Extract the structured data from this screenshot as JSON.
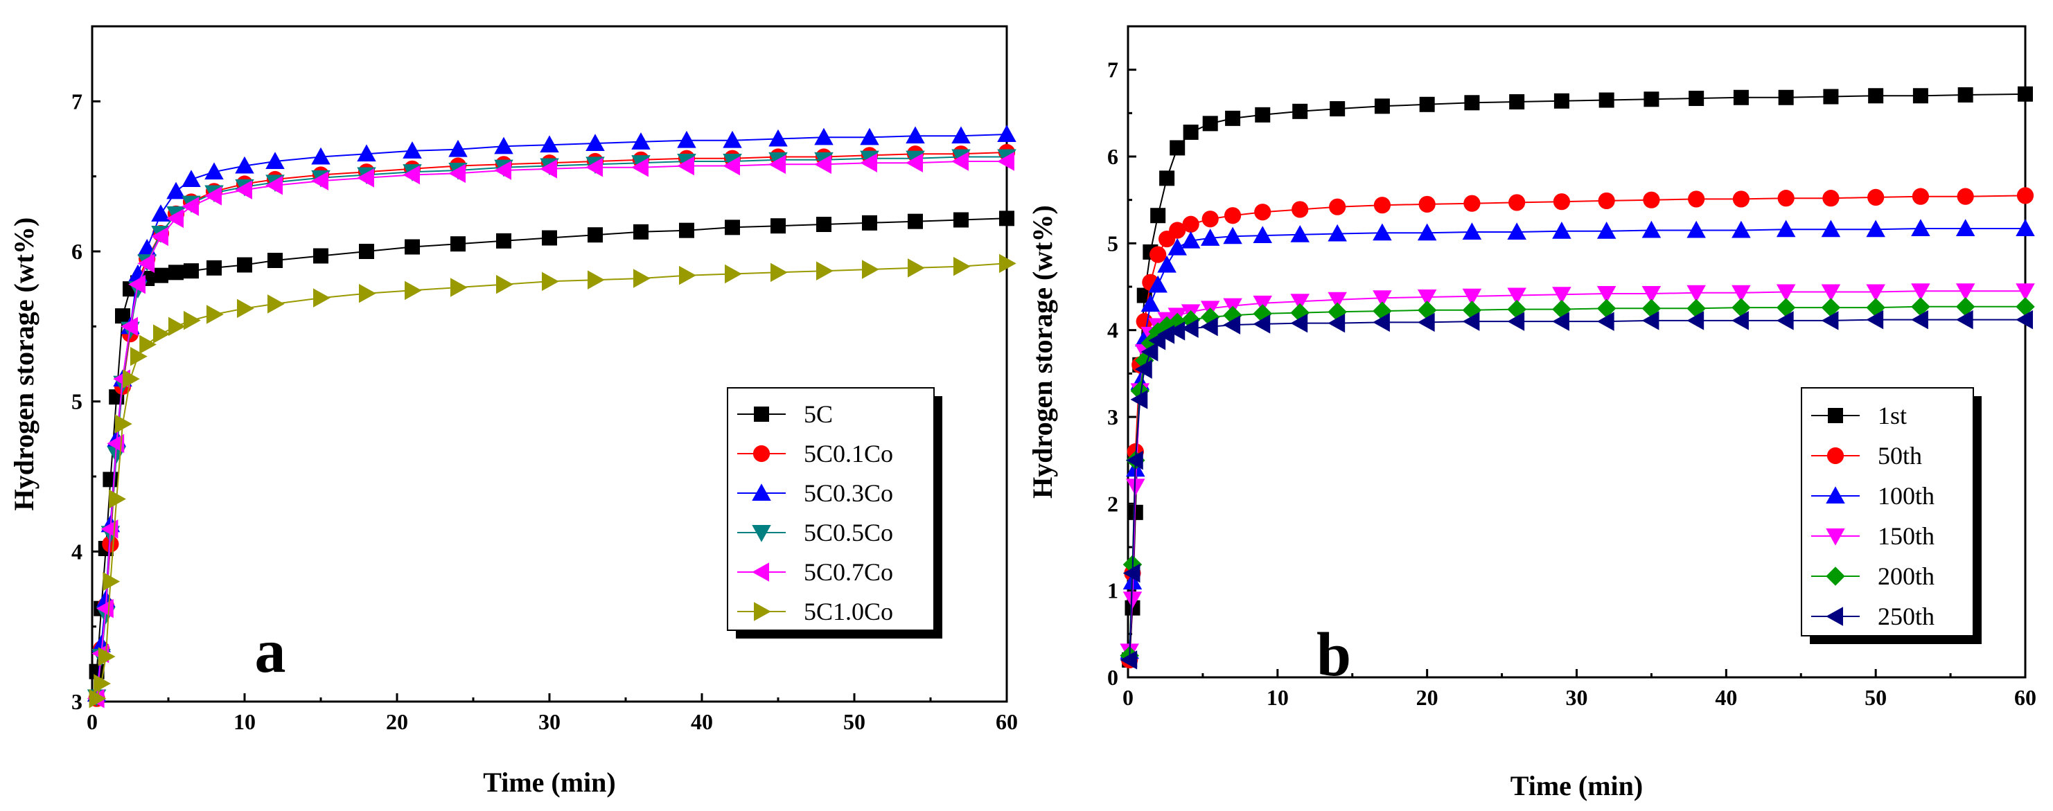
{
  "chart_data": [
    {
      "type": "line",
      "panel_label": "a",
      "xlabel": "Time (min)",
      "ylabel": "Hydrogen storage (wt%)",
      "xlim": [
        0,
        60
      ],
      "ylim": [
        3,
        7.5
      ],
      "xticks": [
        0,
        10,
        20,
        30,
        40,
        50,
        60
      ],
      "yticks": [
        3,
        4,
        5,
        6,
        7
      ],
      "legend_position": "bottom-right",
      "grid": false,
      "series": [
        {
          "name": "5C",
          "color": "#000000",
          "marker": "square",
          "y_plateau": 6.22,
          "x": [
            0.3,
            0.6,
            0.9,
            1.2,
            1.6,
            2,
            2.5,
            3,
            3.6,
            4.5,
            5.5,
            6.5,
            8,
            10,
            12,
            15,
            18,
            21,
            24,
            27,
            30,
            33,
            36,
            39,
            42,
            45,
            48,
            51,
            54,
            57,
            60
          ],
          "y": [
            3.2,
            3.62,
            4.02,
            4.48,
            5.03,
            5.57,
            5.75,
            5.79,
            5.82,
            5.84,
            5.86,
            5.87,
            5.89,
            5.91,
            5.94,
            5.97,
            6,
            6.03,
            6.05,
            6.07,
            6.09,
            6.11,
            6.13,
            6.14,
            6.16,
            6.17,
            6.18,
            6.19,
            6.2,
            6.21,
            6.22
          ]
        },
        {
          "name": "5C0.1Co",
          "color": "#ff0000",
          "marker": "circle",
          "y_plateau": 6.66,
          "x": [
            0.3,
            0.6,
            0.9,
            1.2,
            1.6,
            2,
            2.5,
            3,
            3.6,
            4.5,
            5.5,
            6.5,
            8,
            10,
            12,
            15,
            18,
            21,
            24,
            27,
            30,
            33,
            36,
            39,
            42,
            45,
            48,
            51,
            54,
            57,
            60
          ],
          "y": [
            3.02,
            3.35,
            3.64,
            4.05,
            4.7,
            5.1,
            5.45,
            5.8,
            5.95,
            6.12,
            6.25,
            6.33,
            6.4,
            6.45,
            6.48,
            6.51,
            6.53,
            6.55,
            6.57,
            6.58,
            6.59,
            6.6,
            6.61,
            6.62,
            6.62,
            6.63,
            6.63,
            6.64,
            6.65,
            6.65,
            6.66
          ]
        },
        {
          "name": "5C0.3Co",
          "color": "#0000ff",
          "marker": "triangle-up",
          "y_plateau": 6.78,
          "x": [
            0.3,
            0.6,
            0.9,
            1.2,
            1.6,
            2,
            2.5,
            3,
            3.6,
            4.5,
            5.5,
            6.5,
            8,
            10,
            12,
            15,
            18,
            21,
            24,
            27,
            30,
            33,
            36,
            39,
            42,
            45,
            48,
            51,
            54,
            57,
            60
          ],
          "y": [
            3.05,
            3.38,
            3.68,
            4.18,
            4.75,
            5.15,
            5.5,
            5.85,
            6.02,
            6.25,
            6.4,
            6.48,
            6.53,
            6.57,
            6.6,
            6.63,
            6.65,
            6.67,
            6.68,
            6.7,
            6.71,
            6.72,
            6.73,
            6.74,
            6.74,
            6.75,
            6.76,
            6.76,
            6.77,
            6.77,
            6.78
          ]
        },
        {
          "name": "5C0.5Co",
          "color": "#008080",
          "marker": "triangle-down",
          "y_plateau": 6.63,
          "x": [
            0.3,
            0.6,
            0.9,
            1.2,
            1.6,
            2,
            2.5,
            3,
            3.6,
            4.5,
            5.5,
            6.5,
            8,
            10,
            12,
            15,
            18,
            21,
            24,
            27,
            30,
            33,
            36,
            39,
            42,
            45,
            48,
            51,
            54,
            57,
            60
          ],
          "y": [
            3.03,
            3.3,
            3.58,
            4.12,
            4.65,
            5.12,
            5.48,
            5.75,
            5.93,
            6.12,
            6.25,
            6.32,
            6.39,
            6.43,
            6.46,
            6.49,
            6.51,
            6.53,
            6.54,
            6.56,
            6.57,
            6.58,
            6.59,
            6.6,
            6.6,
            6.61,
            6.61,
            6.62,
            6.62,
            6.63,
            6.63
          ]
        },
        {
          "name": "5C0.7Co",
          "color": "#ff00ff",
          "marker": "triangle-left",
          "y_plateau": 6.6,
          "x": [
            0.3,
            0.6,
            0.9,
            1.2,
            1.6,
            2,
            2.5,
            3,
            3.6,
            4.5,
            5.5,
            6.5,
            8,
            10,
            12,
            15,
            18,
            21,
            24,
            27,
            30,
            33,
            36,
            39,
            42,
            45,
            48,
            51,
            54,
            57,
            60
          ],
          "y": [
            3.02,
            3.32,
            3.62,
            4.15,
            4.72,
            5.15,
            5.5,
            5.78,
            5.92,
            6.1,
            6.22,
            6.3,
            6.37,
            6.41,
            6.44,
            6.47,
            6.49,
            6.51,
            6.52,
            6.54,
            6.55,
            6.56,
            6.56,
            6.57,
            6.57,
            6.58,
            6.58,
            6.59,
            6.59,
            6.6,
            6.6
          ]
        },
        {
          "name": "5C1.0Co",
          "color": "#999900",
          "marker": "triangle-right",
          "y_plateau": 5.92,
          "x": [
            0.3,
            0.6,
            0.9,
            1.2,
            1.6,
            2,
            2.5,
            3,
            3.6,
            4.5,
            5.5,
            6.5,
            8,
            10,
            12,
            15,
            18,
            21,
            24,
            27,
            30,
            33,
            36,
            39,
            42,
            45,
            48,
            51,
            54,
            57,
            60
          ],
          "y": [
            3.02,
            3.12,
            3.3,
            3.8,
            4.35,
            4.85,
            5.15,
            5.3,
            5.38,
            5.45,
            5.5,
            5.54,
            5.58,
            5.62,
            5.65,
            5.69,
            5.72,
            5.74,
            5.76,
            5.78,
            5.8,
            5.81,
            5.82,
            5.84,
            5.85,
            5.86,
            5.87,
            5.88,
            5.89,
            5.9,
            5.92
          ]
        }
      ]
    },
    {
      "type": "line",
      "panel_label": "b",
      "xlabel": "Time (min)",
      "ylabel": "Hydrogen storage (wt%)",
      "xlim": [
        0,
        60
      ],
      "ylim": [
        0,
        7.5
      ],
      "xticks": [
        0,
        10,
        20,
        30,
        40,
        50,
        60
      ],
      "yticks": [
        0,
        1,
        2,
        3,
        4,
        5,
        6,
        7
      ],
      "legend_position": "center-right",
      "grid": false,
      "series": [
        {
          "name": "1st",
          "color": "#000000",
          "marker": "square",
          "y_plateau": 6.72,
          "x": [
            0.1,
            0.3,
            0.5,
            0.8,
            1.1,
            1.5,
            2,
            2.6,
            3.3,
            4.2,
            5.5,
            7,
            9,
            11.5,
            14,
            17,
            20,
            23,
            26,
            29,
            32,
            35,
            38,
            41,
            44,
            47,
            50,
            53,
            56,
            60
          ],
          "y": [
            0.2,
            0.8,
            1.9,
            3.6,
            4.4,
            4.9,
            5.32,
            5.75,
            6.1,
            6.28,
            6.38,
            6.44,
            6.48,
            6.52,
            6.55,
            6.58,
            6.6,
            6.62,
            6.63,
            6.64,
            6.65,
            6.66,
            6.67,
            6.68,
            6.68,
            6.69,
            6.7,
            6.7,
            6.71,
            6.72
          ]
        },
        {
          "name": "50th",
          "color": "#ff0000",
          "marker": "circle",
          "y_plateau": 5.55,
          "x": [
            0.1,
            0.3,
            0.5,
            0.8,
            1.1,
            1.5,
            2,
            2.6,
            3.3,
            4.2,
            5.5,
            7,
            9,
            11.5,
            14,
            17,
            20,
            23,
            26,
            29,
            32,
            35,
            38,
            41,
            44,
            47,
            50,
            53,
            56,
            60
          ],
          "y": [
            0.2,
            1.2,
            2.6,
            3.6,
            4.1,
            4.55,
            4.87,
            5.05,
            5.15,
            5.22,
            5.28,
            5.32,
            5.36,
            5.39,
            5.42,
            5.44,
            5.45,
            5.46,
            5.47,
            5.48,
            5.49,
            5.5,
            5.51,
            5.51,
            5.52,
            5.52,
            5.53,
            5.54,
            5.54,
            5.55
          ]
        },
        {
          "name": "100th",
          "color": "#0000ff",
          "marker": "triangle-up",
          "y_plateau": 5.17,
          "x": [
            0.1,
            0.3,
            0.5,
            0.8,
            1.1,
            1.5,
            2,
            2.6,
            3.3,
            4.2,
            5.5,
            7,
            9,
            11.5,
            14,
            17,
            20,
            23,
            26,
            29,
            32,
            35,
            38,
            41,
            44,
            47,
            50,
            53,
            56,
            60
          ],
          "y": [
            0.3,
            1.1,
            2.4,
            3.4,
            3.9,
            4.3,
            4.52,
            4.75,
            4.95,
            5.03,
            5.06,
            5.08,
            5.09,
            5.1,
            5.11,
            5.12,
            5.12,
            5.13,
            5.13,
            5.14,
            5.14,
            5.15,
            5.15,
            5.15,
            5.16,
            5.16,
            5.16,
            5.17,
            5.17,
            5.17
          ]
        },
        {
          "name": "150th",
          "color": "#ff00ff",
          "marker": "triangle-down",
          "y_plateau": 4.45,
          "x": [
            0.1,
            0.3,
            0.5,
            0.8,
            1.1,
            1.5,
            2,
            2.6,
            3.3,
            4.2,
            5.5,
            7,
            9,
            11.5,
            14,
            17,
            20,
            23,
            26,
            29,
            32,
            35,
            38,
            41,
            44,
            47,
            50,
            53,
            56,
            60
          ],
          "y": [
            0.3,
            0.9,
            2.2,
            3.3,
            3.75,
            3.95,
            4.05,
            4.12,
            4.17,
            4.21,
            4.25,
            4.28,
            4.31,
            4.33,
            4.35,
            4.37,
            4.38,
            4.39,
            4.4,
            4.41,
            4.42,
            4.42,
            4.43,
            4.43,
            4.44,
            4.44,
            4.44,
            4.45,
            4.45,
            4.45
          ]
        },
        {
          "name": "200th",
          "color": "#009900",
          "marker": "diamond",
          "y_plateau": 4.27,
          "x": [
            0.1,
            0.3,
            0.5,
            0.8,
            1.1,
            1.5,
            2,
            2.6,
            3.3,
            4.2,
            5.5,
            7,
            9,
            11.5,
            14,
            17,
            20,
            23,
            26,
            29,
            32,
            35,
            38,
            41,
            44,
            47,
            50,
            53,
            56,
            60
          ],
          "y": [
            0.25,
            1.3,
            2.5,
            3.3,
            3.65,
            3.85,
            3.98,
            4.05,
            4.09,
            4.12,
            4.15,
            4.17,
            4.19,
            4.2,
            4.21,
            4.22,
            4.23,
            4.23,
            4.24,
            4.24,
            4.25,
            4.25,
            4.25,
            4.26,
            4.26,
            4.26,
            4.26,
            4.27,
            4.27,
            4.27
          ]
        },
        {
          "name": "250th",
          "color": "#000080",
          "marker": "triangle-left",
          "y_plateau": 4.12,
          "x": [
            0.1,
            0.3,
            0.5,
            0.8,
            1.1,
            1.5,
            2,
            2.6,
            3.3,
            4.2,
            5.5,
            7,
            9,
            11.5,
            14,
            17,
            20,
            23,
            26,
            29,
            32,
            35,
            38,
            41,
            44,
            47,
            50,
            53,
            56,
            60
          ],
          "y": [
            0.2,
            1.2,
            2.5,
            3.2,
            3.55,
            3.75,
            3.88,
            3.95,
            3.99,
            4.02,
            4.04,
            4.06,
            4.07,
            4.08,
            4.08,
            4.09,
            4.09,
            4.1,
            4.1,
            4.1,
            4.1,
            4.11,
            4.11,
            4.11,
            4.11,
            4.11,
            4.12,
            4.12,
            4.12,
            4.12
          ]
        }
      ]
    }
  ]
}
